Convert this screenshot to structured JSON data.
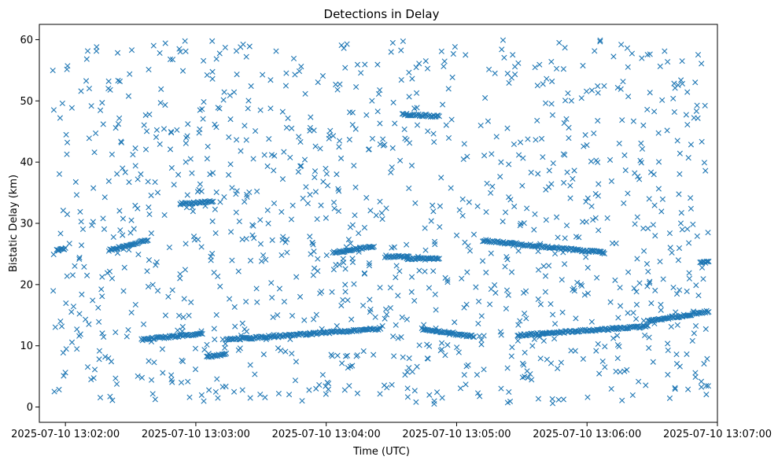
{
  "chart_data": {
    "type": "scatter",
    "title": "Detections in Delay",
    "xlabel": "Time (UTC)",
    "ylabel": "Bistatic Delay (km)",
    "marker": "x",
    "marker_color": "#1f77b4",
    "grid": false,
    "legend": "none",
    "xlim": [
      "2025-07-10 13:01:48",
      "2025-07-10 13:07:00"
    ],
    "ylim": [
      -2.5,
      62.5
    ],
    "x_ticks": [
      "2025-07-10 13:02:00",
      "2025-07-10 13:03:00",
      "2025-07-10 13:04:00",
      "2025-07-10 13:05:00",
      "2025-07-10 13:06:00",
      "2025-07-10 13:07:00"
    ],
    "y_ticks": [
      0,
      10,
      20,
      30,
      40,
      50,
      60
    ],
    "track_segments": [
      {
        "x0": "2025-07-10 13:01:56",
        "x1": "2025-07-10 13:02:00",
        "y0": 25.6,
        "y1": 25.9
      },
      {
        "x0": "2025-07-10 13:02:20",
        "x1": "2025-07-10 13:02:38",
        "y0": 25.6,
        "y1": 27.3
      },
      {
        "x0": "2025-07-10 13:02:35",
        "x1": "2025-07-10 13:03:03",
        "y0": 11.0,
        "y1": 12.0
      },
      {
        "x0": "2025-07-10 13:02:53",
        "x1": "2025-07-10 13:03:08",
        "y0": 33.2,
        "y1": 33.6
      },
      {
        "x0": "2025-07-10 13:03:05",
        "x1": "2025-07-10 13:03:14",
        "y0": 8.2,
        "y1": 8.6
      },
      {
        "x0": "2025-07-10 13:03:14",
        "x1": "2025-07-10 13:04:25",
        "y0": 11.0,
        "y1": 12.8
      },
      {
        "x0": "2025-07-10 13:04:03",
        "x1": "2025-07-10 13:04:22",
        "y0": 25.2,
        "y1": 26.2
      },
      {
        "x0": "2025-07-10 13:04:27",
        "x1": "2025-07-10 13:04:38",
        "y0": 24.6,
        "y1": 24.6
      },
      {
        "x0": "2025-07-10 13:04:37",
        "x1": "2025-07-10 13:04:52",
        "y0": 24.2,
        "y1": 24.2
      },
      {
        "x0": "2025-07-10 13:04:35",
        "x1": "2025-07-10 13:04:52",
        "y0": 47.8,
        "y1": 47.5
      },
      {
        "x0": "2025-07-10 13:04:44",
        "x1": "2025-07-10 13:05:08",
        "y0": 12.7,
        "y1": 11.5
      },
      {
        "x0": "2025-07-10 13:05:12",
        "x1": "2025-07-10 13:06:08",
        "y0": 27.2,
        "y1": 25.2
      },
      {
        "x0": "2025-07-10 13:05:28",
        "x1": "2025-07-10 13:06:28",
        "y0": 11.7,
        "y1": 13.2
      },
      {
        "x0": "2025-07-10 13:06:28",
        "x1": "2025-07-10 13:06:56",
        "y0": 14.0,
        "y1": 15.6
      },
      {
        "x0": "2025-07-10 13:06:52",
        "x1": "2025-07-10 13:06:56",
        "y0": 23.6,
        "y1": 23.6
      }
    ],
    "clutter_points": {
      "count": 1150,
      "x_range": [
        "2025-07-10 13:01:53",
        "2025-07-10 13:06:56"
      ],
      "y_range": [
        0.5,
        60
      ]
    }
  }
}
